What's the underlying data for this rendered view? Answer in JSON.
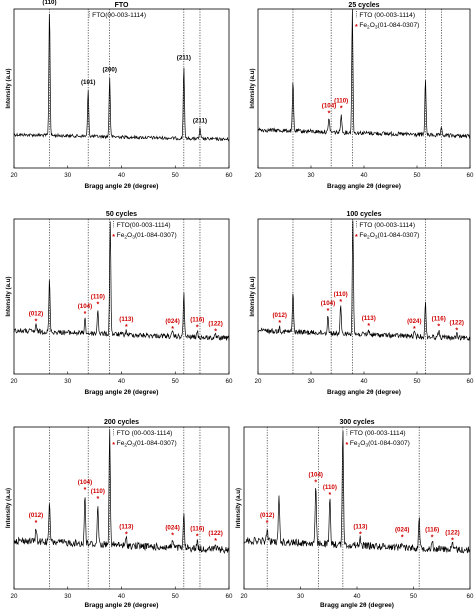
{
  "colors": {
    "curve": "#000000",
    "red": "#d00000",
    "dotted": "#000000"
  },
  "chart_data": [
    {
      "type": "line",
      "title": "FTO",
      "xlabel": "Bragg angle 2θ (degree)",
      "ylabel": "Intensity (a.u)",
      "xlim": [
        20,
        60
      ],
      "xticks": [
        "20",
        "30",
        "40",
        "50",
        "60"
      ],
      "reference_lines_x": [
        26.6,
        33.8,
        37.8,
        51.6,
        54.6
      ],
      "legend": [
        {
          "marker": "dotted-line",
          "text": "FTO(00-003-1114)"
        }
      ],
      "peaks": [
        {
          "x": 26.6,
          "y": 1.0,
          "label": "(110)",
          "color": "black"
        },
        {
          "x": 33.8,
          "y": 0.37,
          "label": "(101)",
          "color": "black"
        },
        {
          "x": 37.8,
          "y": 0.47,
          "label": "(200)",
          "color": "black"
        },
        {
          "x": 51.6,
          "y": 0.58,
          "label": "(211)",
          "color": "black"
        },
        {
          "x": 54.6,
          "y": 0.08,
          "label": "(211)",
          "color": "black"
        }
      ]
    },
    {
      "type": "line",
      "title": "25 cycles",
      "xlabel": "Bragg angle 2θ (degree)",
      "ylabel": "Intensity (a.u)",
      "xlim": [
        20,
        60
      ],
      "xticks": [
        "20",
        "30",
        "40",
        "50",
        "60"
      ],
      "reference_lines_x": [
        26.6,
        33.8,
        37.8,
        51.6,
        54.6
      ],
      "legend": [
        {
          "marker": "dotted-line",
          "text": "FTO (00-003-1114)"
        },
        {
          "marker": "red-star",
          "text": "Fe",
          "sub": "2",
          "text2": "O",
          "sub2": "3",
          "text3": "(01-084-0307)"
        }
      ],
      "peaks": [
        {
          "x": 26.6,
          "y": 0.4
        },
        {
          "x": 33.4,
          "y": 0.12,
          "label": "(104)",
          "color": "red"
        },
        {
          "x": 35.7,
          "y": 0.16,
          "label": "(110)",
          "color": "red"
        },
        {
          "x": 37.8,
          "y": 1.0
        },
        {
          "x": 51.6,
          "y": 0.46
        },
        {
          "x": 54.6,
          "y": 0.05
        }
      ]
    },
    {
      "type": "line",
      "title": "50 cycles",
      "xlabel": "Bragg angle 2θ (degree)",
      "ylabel": "Intensity (a.u)",
      "xlim": [
        20,
        60
      ],
      "xticks": [
        "20",
        "30",
        "40",
        "50",
        "60"
      ],
      "reference_lines_x": [
        26.6,
        33.8,
        37.8,
        51.6,
        54.6
      ],
      "legend": [
        {
          "marker": "dotted-line",
          "text": "FTO(00-003-1114)"
        },
        {
          "marker": "red-star",
          "text": "Fe",
          "sub": "2",
          "text2": "O",
          "sub2": "3",
          "text3": "(01-084-0307)"
        }
      ],
      "peaks": [
        {
          "x": 24.1,
          "y": 0.05,
          "label": "(012)",
          "color": "red"
        },
        {
          "x": 26.6,
          "y": 0.45
        },
        {
          "x": 33.2,
          "y": 0.13,
          "label": "(104)",
          "color": "red"
        },
        {
          "x": 35.6,
          "y": 0.22,
          "label": "(110)",
          "color": "red"
        },
        {
          "x": 37.9,
          "y": 1.0
        },
        {
          "x": 40.9,
          "y": 0.03,
          "label": "(113)",
          "color": "red"
        },
        {
          "x": 49.5,
          "y": 0.03,
          "label": "(024)",
          "color": "red"
        },
        {
          "x": 51.6,
          "y": 0.38
        },
        {
          "x": 54.1,
          "y": 0.05,
          "label": "(116)",
          "color": "red"
        },
        {
          "x": 57.5,
          "y": 0.02,
          "label": "(122)",
          "color": "red"
        }
      ]
    },
    {
      "type": "line",
      "title": "100 cycles",
      "xlabel": "Bragg angle 2θ (degree)",
      "ylabel": "Intensity (a.u)",
      "xlim": [
        20,
        60
      ],
      "xticks": [
        "20",
        "30",
        "40",
        "50",
        "60"
      ],
      "reference_lines_x": [
        26.6,
        33.8,
        37.8,
        51.6
      ],
      "legend": [
        {
          "marker": "dotted-line",
          "text": "FTO (00-003-1114)"
        },
        {
          "marker": "red-star",
          "text": "Fe",
          "sub": "2",
          "text2": "O",
          "sub2": "3",
          "text3": "(01-084-0307)"
        }
      ],
      "peaks": [
        {
          "x": 24.1,
          "y": 0.04,
          "label": "(012)",
          "color": "red"
        },
        {
          "x": 26.6,
          "y": 0.34
        },
        {
          "x": 33.2,
          "y": 0.16,
          "label": "(104)",
          "color": "red"
        },
        {
          "x": 35.6,
          "y": 0.24,
          "label": "(110)",
          "color": "red"
        },
        {
          "x": 37.9,
          "y": 1.0
        },
        {
          "x": 40.9,
          "y": 0.04,
          "label": "(113)",
          "color": "red"
        },
        {
          "x": 49.5,
          "y": 0.03,
          "label": "(024)",
          "color": "red"
        },
        {
          "x": 51.6,
          "y": 0.3
        },
        {
          "x": 54.1,
          "y": 0.06,
          "label": "(116)",
          "color": "red"
        },
        {
          "x": 57.5,
          "y": 0.03,
          "label": "(122)",
          "color": "red"
        }
      ]
    },
    {
      "type": "line",
      "title": "200 cycles",
      "xlabel": "Bragg angle 2θ (degree)",
      "ylabel": "Intensity (a.u)",
      "xlim": [
        20,
        60
      ],
      "xticks": [
        "20",
        "30",
        "40",
        "50",
        "60"
      ],
      "reference_lines_x": [
        26.6,
        33.8,
        37.8,
        51.6,
        54.6
      ],
      "legend": [
        {
          "marker": "dotted-line",
          "text": "FTO (00-003-1114)"
        },
        {
          "marker": "red-star",
          "text": "Fe",
          "sub": "2",
          "text2": "O",
          "sub2": "3",
          "text3": "(01-084-0307)"
        }
      ],
      "peaks": [
        {
          "x": 24.1,
          "y": 0.12,
          "label": "(012)",
          "color": "red"
        },
        {
          "x": 26.6,
          "y": 0.35
        },
        {
          "x": 33.2,
          "y": 0.42,
          "label": "(104)",
          "color": "red"
        },
        {
          "x": 35.6,
          "y": 0.35,
          "label": "(110)",
          "color": "red"
        },
        {
          "x": 37.8,
          "y": 1.0
        },
        {
          "x": 40.9,
          "y": 0.06,
          "label": "(113)",
          "color": "red"
        },
        {
          "x": 49.5,
          "y": 0.07,
          "label": "(024)",
          "color": "red"
        },
        {
          "x": 51.6,
          "y": 0.28
        },
        {
          "x": 54.1,
          "y": 0.07,
          "label": "(116)",
          "color": "red"
        },
        {
          "x": 57.5,
          "y": 0.04,
          "label": "(122)",
          "color": "red"
        }
      ]
    },
    {
      "type": "line",
      "title": "300 cycles",
      "xlabel": "Bragg angle 2θ (degree)",
      "ylabel": "Intensity (a.u)",
      "xlim": [
        20,
        60
      ],
      "xticks": [
        "20",
        "30",
        "40",
        "50",
        "60"
      ],
      "reference_lines_x": [
        24.1,
        33.2,
        37.5,
        51.0
      ],
      "legend": [
        {
          "marker": "dotted-line",
          "text": "FTO (00-003-1114)"
        },
        {
          "marker": "red-star",
          "text": "Fe",
          "sub": "2",
          "text2": "O",
          "sub2": "3",
          "text3": "(01-084-0307)"
        }
      ],
      "peaks": [
        {
          "x": 24.1,
          "y": 0.12,
          "label": "(012)",
          "color": "red"
        },
        {
          "x": 26.2,
          "y": 0.4
        },
        {
          "x": 32.7,
          "y": 0.48,
          "label": "(104)",
          "color": "red"
        },
        {
          "x": 35.2,
          "y": 0.38,
          "label": "(110)",
          "color": "red"
        },
        {
          "x": 37.5,
          "y": 1.0
        },
        {
          "x": 40.6,
          "y": 0.06,
          "label": "(113)",
          "color": "red"
        },
        {
          "x": 48.0,
          "y": 0.05,
          "label": "(024)",
          "color": "red"
        },
        {
          "x": 51.0,
          "y": 0.25
        },
        {
          "x": 53.3,
          "y": 0.06,
          "label": "(116)",
          "color": "red"
        },
        {
          "x": 56.9,
          "y": 0.04,
          "label": "(122)",
          "color": "red"
        }
      ]
    }
  ]
}
